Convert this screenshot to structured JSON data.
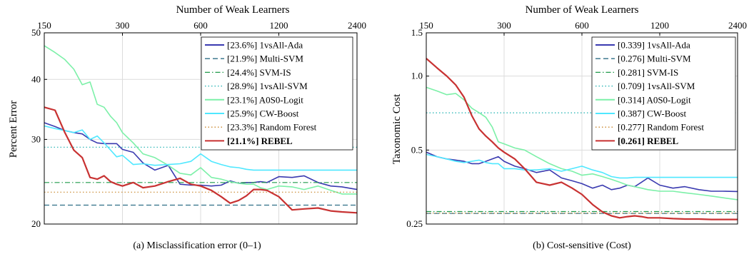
{
  "colors": {
    "1vsAll-Ada": "#3a3ab0",
    "Multi-SVM": "#2e6e86",
    "SVM-IS": "#1f9a4a",
    "1vsAll-SVM": "#1cb0b0",
    "A0S0-Logit": "#7cf0a8",
    "CW-Boost": "#4fe8ff",
    "Random Forest": "#c8862a",
    "REBEL": "#c83232"
  },
  "chart_data": [
    {
      "type": "line",
      "title": "Number of Weak Learners",
      "caption": "(a) Misclassification error (0–1)",
      "xlabel": "Number of Weak Learners",
      "ylabel": "Percent Error",
      "x_scale": "log",
      "y_scale": "log",
      "xlim": [
        150,
        2400
      ],
      "ylim": [
        20,
        50
      ],
      "x_ticks": [
        150,
        300,
        600,
        1200,
        2400
      ],
      "y_ticks": [
        20,
        30,
        40,
        50
      ],
      "legend_position": "top-right",
      "grid": true,
      "x": [
        150,
        165,
        180,
        195,
        210,
        225,
        240,
        255,
        270,
        285,
        300,
        330,
        360,
        400,
        450,
        500,
        550,
        600,
        660,
        720,
        780,
        840,
        900,
        960,
        1020,
        1080,
        1200,
        1350,
        1500,
        1700,
        1900,
        2100,
        2400
      ],
      "series": [
        {
          "name": "1vsAll-Ada",
          "label": "[23.6%] 1vsAll-Ada",
          "style": "solid",
          "values": [
            32.5,
            31.9,
            31.3,
            31.0,
            30.8,
            30.0,
            29.5,
            29.4,
            29.4,
            29.4,
            28.6,
            28.2,
            26.8,
            25.9,
            26.5,
            24.2,
            24.1,
            24.1,
            24.0,
            24.1,
            24.6,
            24.3,
            24.4,
            24.4,
            24.5,
            24.4,
            25.1,
            25.0,
            25.2,
            24.4,
            24.0,
            23.9,
            23.6
          ]
        },
        {
          "name": "Multi-SVM",
          "label": "[21.9%] Multi-SVM",
          "style": "dashed",
          "values": [
            21.9,
            21.9,
            21.9,
            21.9,
            21.9,
            21.9,
            21.9,
            21.9,
            21.9,
            21.9,
            21.9,
            21.9,
            21.9,
            21.9,
            21.9,
            21.9,
            21.9,
            21.9,
            21.9,
            21.9,
            21.9,
            21.9,
            21.9,
            21.9,
            21.9,
            21.9,
            21.9,
            21.9,
            21.9,
            21.9,
            21.9,
            21.9,
            21.9
          ]
        },
        {
          "name": "SVM-IS",
          "label": "[24.4%] SVM-IS",
          "style": "dashdot",
          "values": [
            24.4,
            24.4,
            24.4,
            24.4,
            24.4,
            24.4,
            24.4,
            24.4,
            24.4,
            24.4,
            24.4,
            24.4,
            24.4,
            24.4,
            24.4,
            24.4,
            24.4,
            24.4,
            24.4,
            24.4,
            24.4,
            24.4,
            24.4,
            24.4,
            24.4,
            24.4,
            24.4,
            24.4,
            24.4,
            24.4,
            24.4,
            24.4,
            24.4
          ]
        },
        {
          "name": "1vsAll-SVM",
          "label": "[28.9%] 1vsAll-SVM",
          "style": "dotted",
          "values": [
            28.9,
            28.9,
            28.9,
            28.9,
            28.9,
            28.9,
            28.9,
            28.9,
            28.9,
            28.9,
            28.9,
            28.9,
            28.9,
            28.9,
            28.9,
            28.9,
            28.9,
            28.9,
            28.9,
            28.9,
            28.9,
            28.9,
            28.9,
            28.9,
            28.9,
            28.9,
            28.9,
            28.9,
            28.9,
            28.9,
            28.9,
            28.9,
            28.9
          ]
        },
        {
          "name": "A0S0-Logit",
          "label": "[23.1%] A0S0-Logit",
          "style": "solid",
          "values": [
            47.0,
            45.5,
            44.0,
            42.0,
            39.0,
            39.5,
            35.5,
            35.0,
            33.5,
            32.5,
            31.0,
            29.5,
            28.0,
            27.5,
            26.5,
            25.5,
            25.3,
            26.2,
            25.0,
            24.8,
            24.5,
            24.3,
            24.2,
            24.2,
            23.8,
            23.6,
            24.0,
            23.9,
            23.6,
            24.0,
            23.5,
            23.1,
            23.1
          ]
        },
        {
          "name": "CW-Boost",
          "label": "[25.9%] CW-Boost",
          "style": "solid",
          "values": [
            32.0,
            31.6,
            31.3,
            31.0,
            31.4,
            30.0,
            30.5,
            29.5,
            28.5,
            27.6,
            27.8,
            26.6,
            26.7,
            26.5,
            26.6,
            26.7,
            27.0,
            28.0,
            27.0,
            26.6,
            26.3,
            26.2,
            26.0,
            25.9,
            25.9,
            25.9,
            25.9,
            25.9,
            25.9,
            25.9,
            25.9,
            25.9,
            25.9
          ]
        },
        {
          "name": "Random Forest",
          "label": "[23.3%] Random Forest",
          "style": "dotted",
          "values": [
            23.3,
            23.3,
            23.3,
            23.3,
            23.3,
            23.3,
            23.3,
            23.3,
            23.3,
            23.3,
            23.3,
            23.3,
            23.3,
            23.3,
            23.3,
            23.3,
            23.3,
            23.3,
            23.3,
            23.3,
            23.3,
            23.3,
            23.3,
            23.3,
            23.3,
            23.3,
            23.3,
            23.3,
            23.3,
            23.3,
            23.3,
            23.3,
            23.3
          ]
        },
        {
          "name": "REBEL",
          "label": "[21.1%] REBEL",
          "bold": true,
          "style": "solid",
          "values": [
            35.0,
            34.5,
            31.0,
            28.5,
            27.5,
            25.0,
            24.8,
            25.2,
            24.5,
            24.2,
            24.0,
            24.4,
            23.8,
            24.0,
            24.5,
            24.9,
            24.2,
            24.0,
            23.5,
            22.8,
            22.1,
            22.4,
            22.9,
            23.6,
            23.6,
            23.5,
            22.8,
            21.4,
            21.5,
            21.6,
            21.3,
            21.2,
            21.1
          ]
        }
      ]
    },
    {
      "type": "line",
      "title": "Number of Weak Learners",
      "caption": "(b) Cost-sensitive (Cost)",
      "xlabel": "Number of Weak Learners",
      "ylabel": "Taxonomic Cost",
      "x_scale": "log",
      "y_scale": "log",
      "xlim": [
        150,
        2400
      ],
      "ylim": [
        0.25,
        1.5
      ],
      "x_ticks": [
        150,
        300,
        600,
        1200,
        2400
      ],
      "y_ticks": [
        0.25,
        0.5,
        1.0,
        1.5
      ],
      "legend_position": "top-right",
      "grid": true,
      "x": [
        150,
        165,
        180,
        195,
        210,
        225,
        240,
        255,
        270,
        285,
        300,
        330,
        360,
        400,
        450,
        500,
        550,
        600,
        660,
        720,
        780,
        840,
        900,
        960,
        1020,
        1080,
        1200,
        1350,
        1500,
        1700,
        1900,
        2100,
        2400
      ],
      "series": [
        {
          "name": "1vsAll-Ada",
          "label": "[0.339] 1vsAll-Ada",
          "style": "solid",
          "values": [
            0.49,
            0.47,
            0.46,
            0.455,
            0.45,
            0.44,
            0.44,
            0.45,
            0.46,
            0.47,
            0.45,
            0.43,
            0.42,
            0.405,
            0.415,
            0.385,
            0.375,
            0.365,
            0.35,
            0.36,
            0.345,
            0.35,
            0.36,
            0.355,
            0.37,
            0.385,
            0.36,
            0.35,
            0.355,
            0.345,
            0.34,
            0.34,
            0.339
          ]
        },
        {
          "name": "Multi-SVM",
          "label": "[0.276] Multi-SVM",
          "style": "dashed",
          "values": [
            0.276,
            0.276,
            0.276,
            0.276,
            0.276,
            0.276,
            0.276,
            0.276,
            0.276,
            0.276,
            0.276,
            0.276,
            0.276,
            0.276,
            0.276,
            0.276,
            0.276,
            0.276,
            0.276,
            0.276,
            0.276,
            0.276,
            0.276,
            0.276,
            0.276,
            0.276,
            0.276,
            0.276,
            0.276,
            0.276,
            0.276,
            0.276,
            0.276
          ]
        },
        {
          "name": "SVM-IS",
          "label": "[0.281] SVM-IS",
          "style": "dashdot",
          "values": [
            0.281,
            0.281,
            0.281,
            0.281,
            0.281,
            0.281,
            0.281,
            0.281,
            0.281,
            0.281,
            0.281,
            0.281,
            0.281,
            0.281,
            0.281,
            0.281,
            0.281,
            0.281,
            0.281,
            0.281,
            0.281,
            0.281,
            0.281,
            0.281,
            0.281,
            0.281,
            0.281,
            0.281,
            0.281,
            0.281,
            0.281,
            0.281,
            0.281
          ]
        },
        {
          "name": "1vsAll-SVM",
          "label": "[0.709] 1vsAll-SVM",
          "style": "dotted",
          "values": [
            0.709,
            0.709,
            0.709,
            0.709,
            0.709,
            0.709,
            0.709,
            0.709,
            0.709,
            0.709,
            0.709,
            0.709,
            0.709,
            0.709,
            0.709,
            0.709,
            0.709,
            0.709,
            0.709,
            0.709,
            0.709,
            0.709,
            0.709,
            0.709,
            0.709,
            0.709,
            0.709,
            0.709,
            0.709,
            0.709,
            0.709,
            0.709,
            0.709
          ]
        },
        {
          "name": "A0S0-Logit",
          "label": "[0.314] A0S0-Logit",
          "style": "solid",
          "values": [
            0.9,
            0.87,
            0.84,
            0.85,
            0.8,
            0.74,
            0.71,
            0.68,
            0.62,
            0.54,
            0.53,
            0.51,
            0.5,
            0.47,
            0.44,
            0.42,
            0.41,
            0.395,
            0.4,
            0.39,
            0.38,
            0.37,
            0.36,
            0.355,
            0.35,
            0.345,
            0.34,
            0.34,
            0.335,
            0.33,
            0.325,
            0.32,
            0.314
          ]
        },
        {
          "name": "CW-Boost",
          "label": "[0.387] CW-Boost",
          "style": "solid",
          "values": [
            0.48,
            0.47,
            0.46,
            0.45,
            0.445,
            0.45,
            0.455,
            0.445,
            0.44,
            0.44,
            0.42,
            0.42,
            0.415,
            0.415,
            0.42,
            0.41,
            0.42,
            0.43,
            0.415,
            0.405,
            0.39,
            0.385,
            0.385,
            0.387,
            0.387,
            0.387,
            0.387,
            0.387,
            0.387,
            0.387,
            0.387,
            0.387,
            0.387
          ]
        },
        {
          "name": "Random Forest",
          "label": "[0.277] Random Forest",
          "style": "dotted",
          "values": [
            0.277,
            0.277,
            0.277,
            0.277,
            0.277,
            0.277,
            0.277,
            0.277,
            0.277,
            0.277,
            0.277,
            0.277,
            0.277,
            0.277,
            0.277,
            0.277,
            0.277,
            0.277,
            0.277,
            0.277,
            0.277,
            0.277,
            0.277,
            0.277,
            0.277,
            0.277,
            0.277,
            0.277,
            0.277,
            0.277,
            0.277,
            0.277,
            0.277
          ]
        },
        {
          "name": "REBEL",
          "label": "[0.261] REBEL",
          "bold": true,
          "style": "solid",
          "values": [
            1.18,
            1.08,
            1.0,
            0.92,
            0.82,
            0.69,
            0.61,
            0.57,
            0.54,
            0.51,
            0.49,
            0.46,
            0.42,
            0.37,
            0.36,
            0.37,
            0.35,
            0.33,
            0.3,
            0.28,
            0.27,
            0.265,
            0.268,
            0.27,
            0.268,
            0.265,
            0.265,
            0.263,
            0.262,
            0.262,
            0.261,
            0.261,
            0.261
          ]
        }
      ]
    }
  ]
}
